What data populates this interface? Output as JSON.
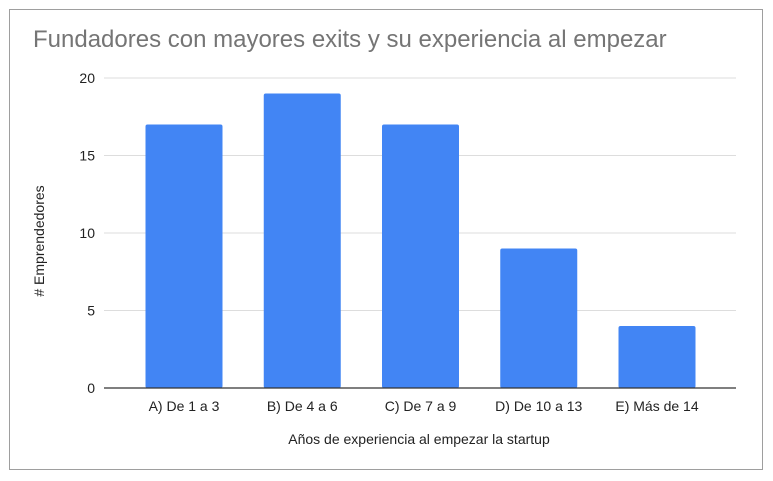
{
  "chart_data": {
    "type": "bar",
    "title": "Fundadores con mayores exits y su experiencia al empezar",
    "xlabel": "Años de experiencia al empezar la startup",
    "ylabel": "# Emprendedores",
    "categories": [
      "A) De 1 a 3",
      "B) De 4 a 6",
      "C) De 7 a 9",
      "D) De 10 a 13",
      "E) Más de 14"
    ],
    "values": [
      17,
      19,
      17,
      9,
      4
    ],
    "ylim": [
      0,
      20
    ],
    "yticks": [
      "0",
      "5",
      "10",
      "15",
      "20"
    ],
    "ytick_values": [
      0,
      5,
      10,
      15,
      20
    ],
    "grid": true,
    "legend": "none",
    "bar_color": "#4285f4",
    "grid_color": "#dddddd",
    "axis_color": "#333333"
  }
}
